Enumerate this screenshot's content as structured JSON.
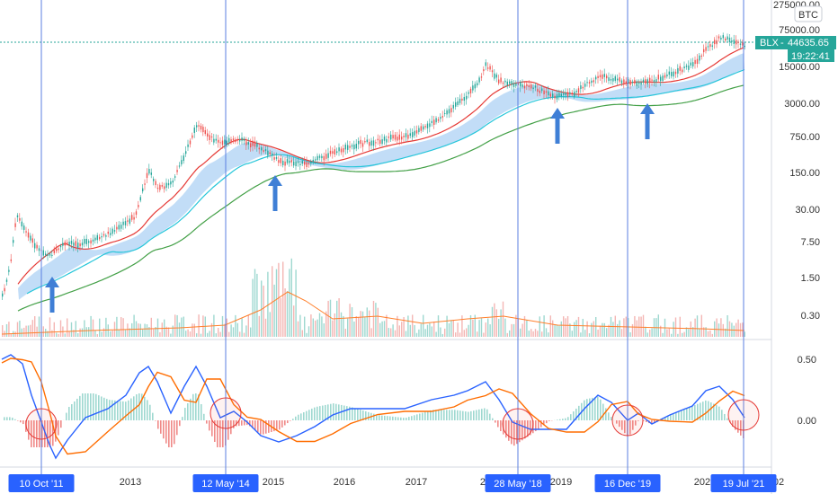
{
  "chart_data": {
    "type": "line",
    "symbol_badge": "BTC",
    "price_tag": {
      "symbol": "BLX",
      "price": "44635.65",
      "countdown": "19:22:41",
      "color": "#26a69a"
    },
    "price_axis": {
      "scale": "log",
      "ticks": [
        "275000.00",
        "75000.00",
        "15000.00",
        "3000.00",
        "750.00",
        "150.00",
        "30.00",
        "7.50",
        "1.50",
        "0.30"
      ]
    },
    "macd_axis": {
      "ticks": [
        "0.50",
        "0.00"
      ]
    },
    "time_axis": {
      "labels": [
        "2013",
        "2015",
        "2016",
        "2017",
        "2019",
        "2021"
      ],
      "truncated_labels": [
        "20",
        "20",
        "02"
      ]
    },
    "vertical_markers": [
      {
        "label": "10 Oct '11"
      },
      {
        "label": "12 May '14"
      },
      {
        "label": "28 May '18"
      },
      {
        "label": "16 Dec '19"
      },
      {
        "label": "19 Jul '21"
      }
    ],
    "annotations": {
      "arrows": 4,
      "circles": 5
    },
    "colors": {
      "price": "#2e7d5b",
      "ma_red": "#e53935",
      "ma_green": "#43a047",
      "ma_teal": "#26c6da",
      "ribbon": "#b3d4f5",
      "macd": "#2962ff",
      "signal": "#ff6d00",
      "volume_ma": "#ff7f2a",
      "arrow": "#3f7fd6",
      "circle": "#e53935",
      "marker_line": "#5b7fe0",
      "marker_flag": "#2962ff"
    }
  }
}
